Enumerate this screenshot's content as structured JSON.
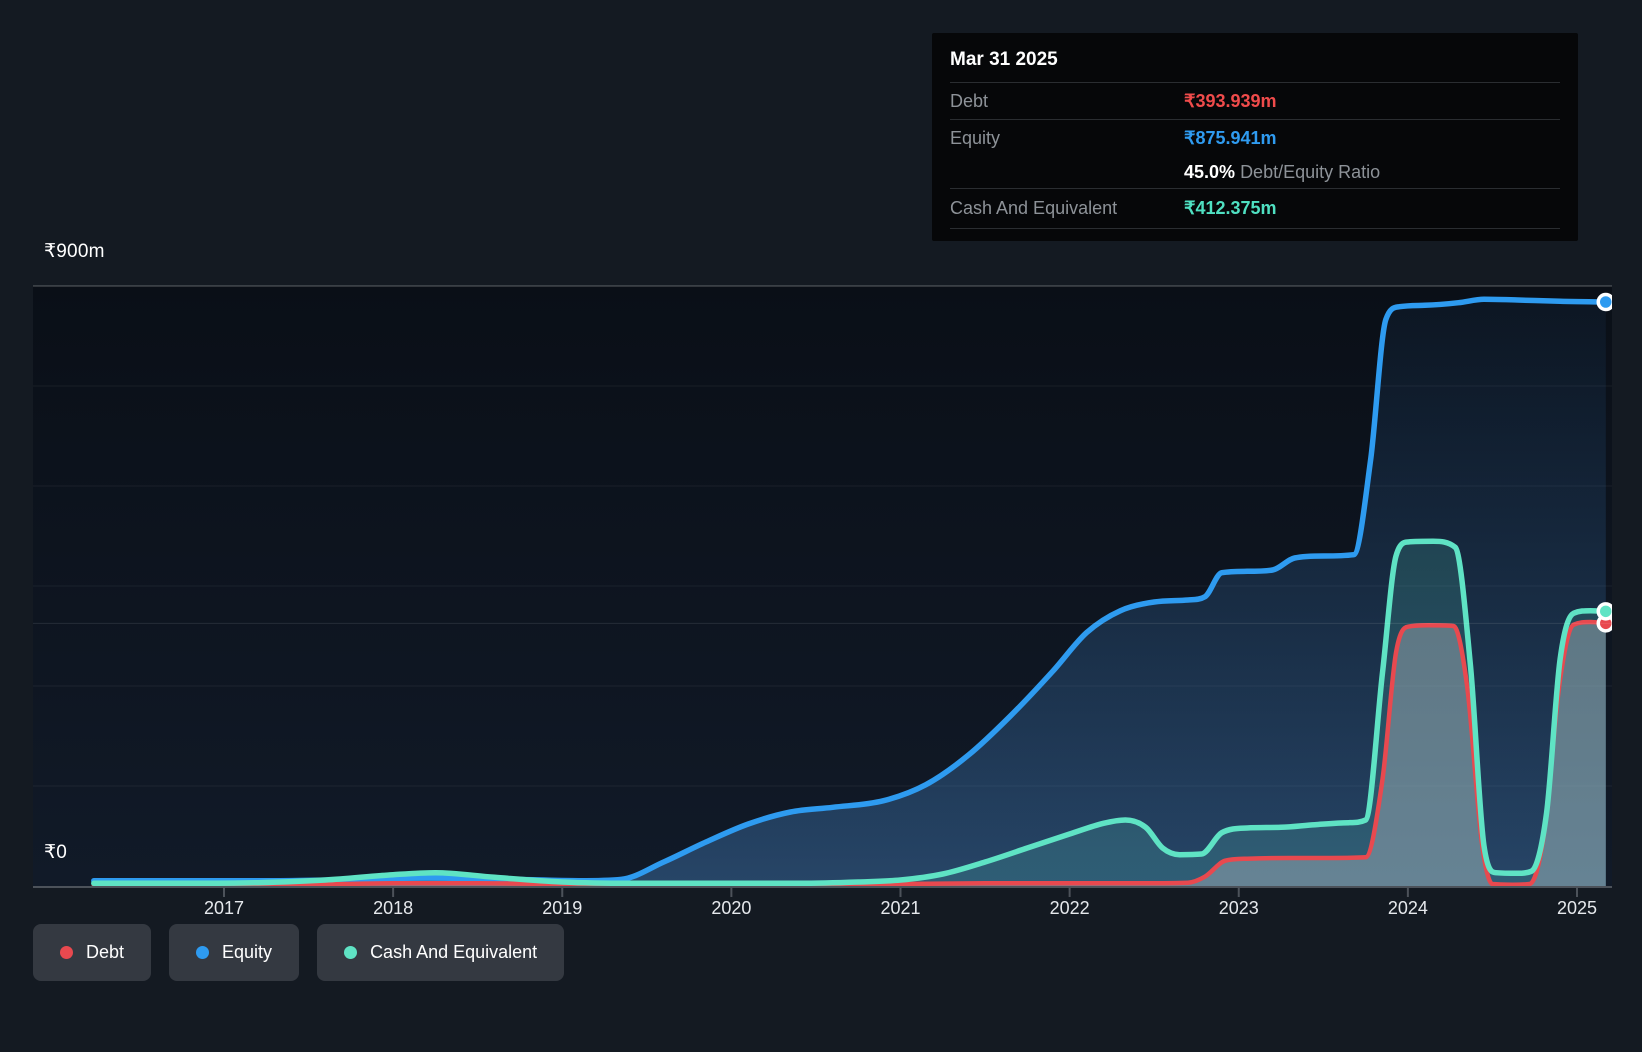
{
  "tooltip": {
    "date": "Mar 31 2025",
    "debt_label": "Debt",
    "debt_value": "₹393.939m",
    "equity_label": "Equity",
    "equity_value": "₹875.941m",
    "ratio_value": "45.0%",
    "ratio_label": "Debt/Equity Ratio",
    "cash_label": "Cash And Equivalent",
    "cash_value": "₹412.375m"
  },
  "y_axis": {
    "top_label": "₹900m",
    "zero_label": "₹0"
  },
  "legend": {
    "items": [
      {
        "label": "Debt",
        "color": "#e8494f"
      },
      {
        "label": "Equity",
        "color": "#2e9bf0"
      },
      {
        "label": "Cash And Equivalent",
        "color": "#5fe3c4"
      }
    ]
  },
  "colors": {
    "debt": "#e8494f",
    "equity": "#2e9bf0",
    "cash": "#5fe3c4",
    "axis": "#4c525a",
    "grid_major": "rgba(255,255,255,0.22)",
    "grid_minor": "rgba(255,255,255,0.06)",
    "guide": "rgba(255,255,255,0.10)"
  },
  "chart_data": {
    "type": "area",
    "title": "Debt, Equity and Cash history",
    "unit": "₹m",
    "x_range": [
      2016.23,
      2025.25
    ],
    "y_range": [
      0,
      900
    ],
    "y_gridline_values": [
      900,
      750,
      600,
      450,
      300,
      150
    ],
    "y_tick_labels": [
      "₹900m",
      "₹0"
    ],
    "x_ticks": [
      2017,
      2018,
      2019,
      2020,
      2021,
      2022,
      2023,
      2024,
      2025
    ],
    "hover_guide_value": 393.939,
    "legend_position": "bottom-left",
    "series": [
      {
        "name": "Equity",
        "color_key": "equity",
        "points": [
          [
            2016.23,
            8
          ],
          [
            2016.8,
            8
          ],
          [
            2017.3,
            8
          ],
          [
            2017.8,
            10
          ],
          [
            2018.2,
            12
          ],
          [
            2018.7,
            10
          ],
          [
            2019.1,
            8
          ],
          [
            2019.35,
            10
          ],
          [
            2019.6,
            36
          ],
          [
            2019.85,
            66
          ],
          [
            2020.1,
            93
          ],
          [
            2020.35,
            111
          ],
          [
            2020.6,
            118
          ],
          [
            2020.9,
            128
          ],
          [
            2021.15,
            152
          ],
          [
            2021.4,
            196
          ],
          [
            2021.65,
            255
          ],
          [
            2021.9,
            322
          ],
          [
            2022.1,
            380
          ],
          [
            2022.3,
            413
          ],
          [
            2022.5,
            426
          ],
          [
            2022.7,
            429
          ],
          [
            2022.8,
            434
          ],
          [
            2022.9,
            470
          ],
          [
            2023.05,
            472
          ],
          [
            2023.2,
            474
          ],
          [
            2023.33,
            492
          ],
          [
            2023.5,
            495
          ],
          [
            2023.68,
            497
          ],
          [
            2023.78,
            640
          ],
          [
            2023.87,
            850
          ],
          [
            2023.95,
            869
          ],
          [
            2024.1,
            871
          ],
          [
            2024.3,
            875
          ],
          [
            2024.45,
            880
          ],
          [
            2024.65,
            879
          ],
          [
            2024.9,
            877
          ],
          [
            2025.17,
            876
          ]
        ],
        "end_value": 875.941
      },
      {
        "name": "Cash And Equivalent",
        "color_key": "cash",
        "points": [
          [
            2016.23,
            4
          ],
          [
            2016.8,
            4
          ],
          [
            2017.2,
            5
          ],
          [
            2017.6,
            9
          ],
          [
            2018.0,
            17
          ],
          [
            2018.25,
            20
          ],
          [
            2018.6,
            13
          ],
          [
            2019.0,
            6
          ],
          [
            2019.4,
            4
          ],
          [
            2019.9,
            4
          ],
          [
            2020.4,
            4
          ],
          [
            2020.75,
            6
          ],
          [
            2021.0,
            9
          ],
          [
            2021.25,
            18
          ],
          [
            2021.5,
            36
          ],
          [
            2021.75,
            57
          ],
          [
            2022.0,
            78
          ],
          [
            2022.2,
            94
          ],
          [
            2022.33,
            99
          ],
          [
            2022.45,
            88
          ],
          [
            2022.55,
            57
          ],
          [
            2022.65,
            47
          ],
          [
            2022.78,
            48
          ],
          [
            2022.9,
            80
          ],
          [
            2023.05,
            87
          ],
          [
            2023.25,
            88
          ],
          [
            2023.45,
            92
          ],
          [
            2023.65,
            95
          ],
          [
            2023.75,
            99
          ],
          [
            2023.85,
            320
          ],
          [
            2023.93,
            495
          ],
          [
            2024.0,
            516
          ],
          [
            2024.15,
            517
          ],
          [
            2024.28,
            508
          ],
          [
            2024.37,
            330
          ],
          [
            2024.45,
            60
          ],
          [
            2024.52,
            20
          ],
          [
            2024.65,
            19
          ],
          [
            2024.73,
            22
          ],
          [
            2024.82,
            110
          ],
          [
            2024.9,
            340
          ],
          [
            2024.98,
            409
          ],
          [
            2025.08,
            413
          ],
          [
            2025.17,
            412
          ]
        ],
        "end_value": 412.375
      },
      {
        "name": "Debt",
        "color_key": "debt",
        "points": [
          [
            2016.23,
            1
          ],
          [
            2017.0,
            1
          ],
          [
            2017.5,
            2
          ],
          [
            2018.0,
            4
          ],
          [
            2018.5,
            4
          ],
          [
            2019.0,
            3
          ],
          [
            2019.5,
            3
          ],
          [
            2020.0,
            3
          ],
          [
            2020.5,
            3
          ],
          [
            2021.0,
            3
          ],
          [
            2021.5,
            4
          ],
          [
            2022.0,
            4
          ],
          [
            2022.4,
            4
          ],
          [
            2022.7,
            5
          ],
          [
            2022.8,
            14
          ],
          [
            2022.92,
            38
          ],
          [
            2023.05,
            41
          ],
          [
            2023.3,
            42
          ],
          [
            2023.55,
            42
          ],
          [
            2023.75,
            43
          ],
          [
            2023.85,
            160
          ],
          [
            2023.93,
            350
          ],
          [
            2024.0,
            389
          ],
          [
            2024.12,
            391
          ],
          [
            2024.27,
            390
          ],
          [
            2024.35,
            300
          ],
          [
            2024.44,
            60
          ],
          [
            2024.5,
            3
          ],
          [
            2024.62,
            2
          ],
          [
            2024.72,
            3
          ],
          [
            2024.8,
            70
          ],
          [
            2024.9,
            310
          ],
          [
            2024.98,
            392
          ],
          [
            2025.08,
            396
          ],
          [
            2025.17,
            394
          ]
        ],
        "end_value": 393.939
      }
    ]
  }
}
